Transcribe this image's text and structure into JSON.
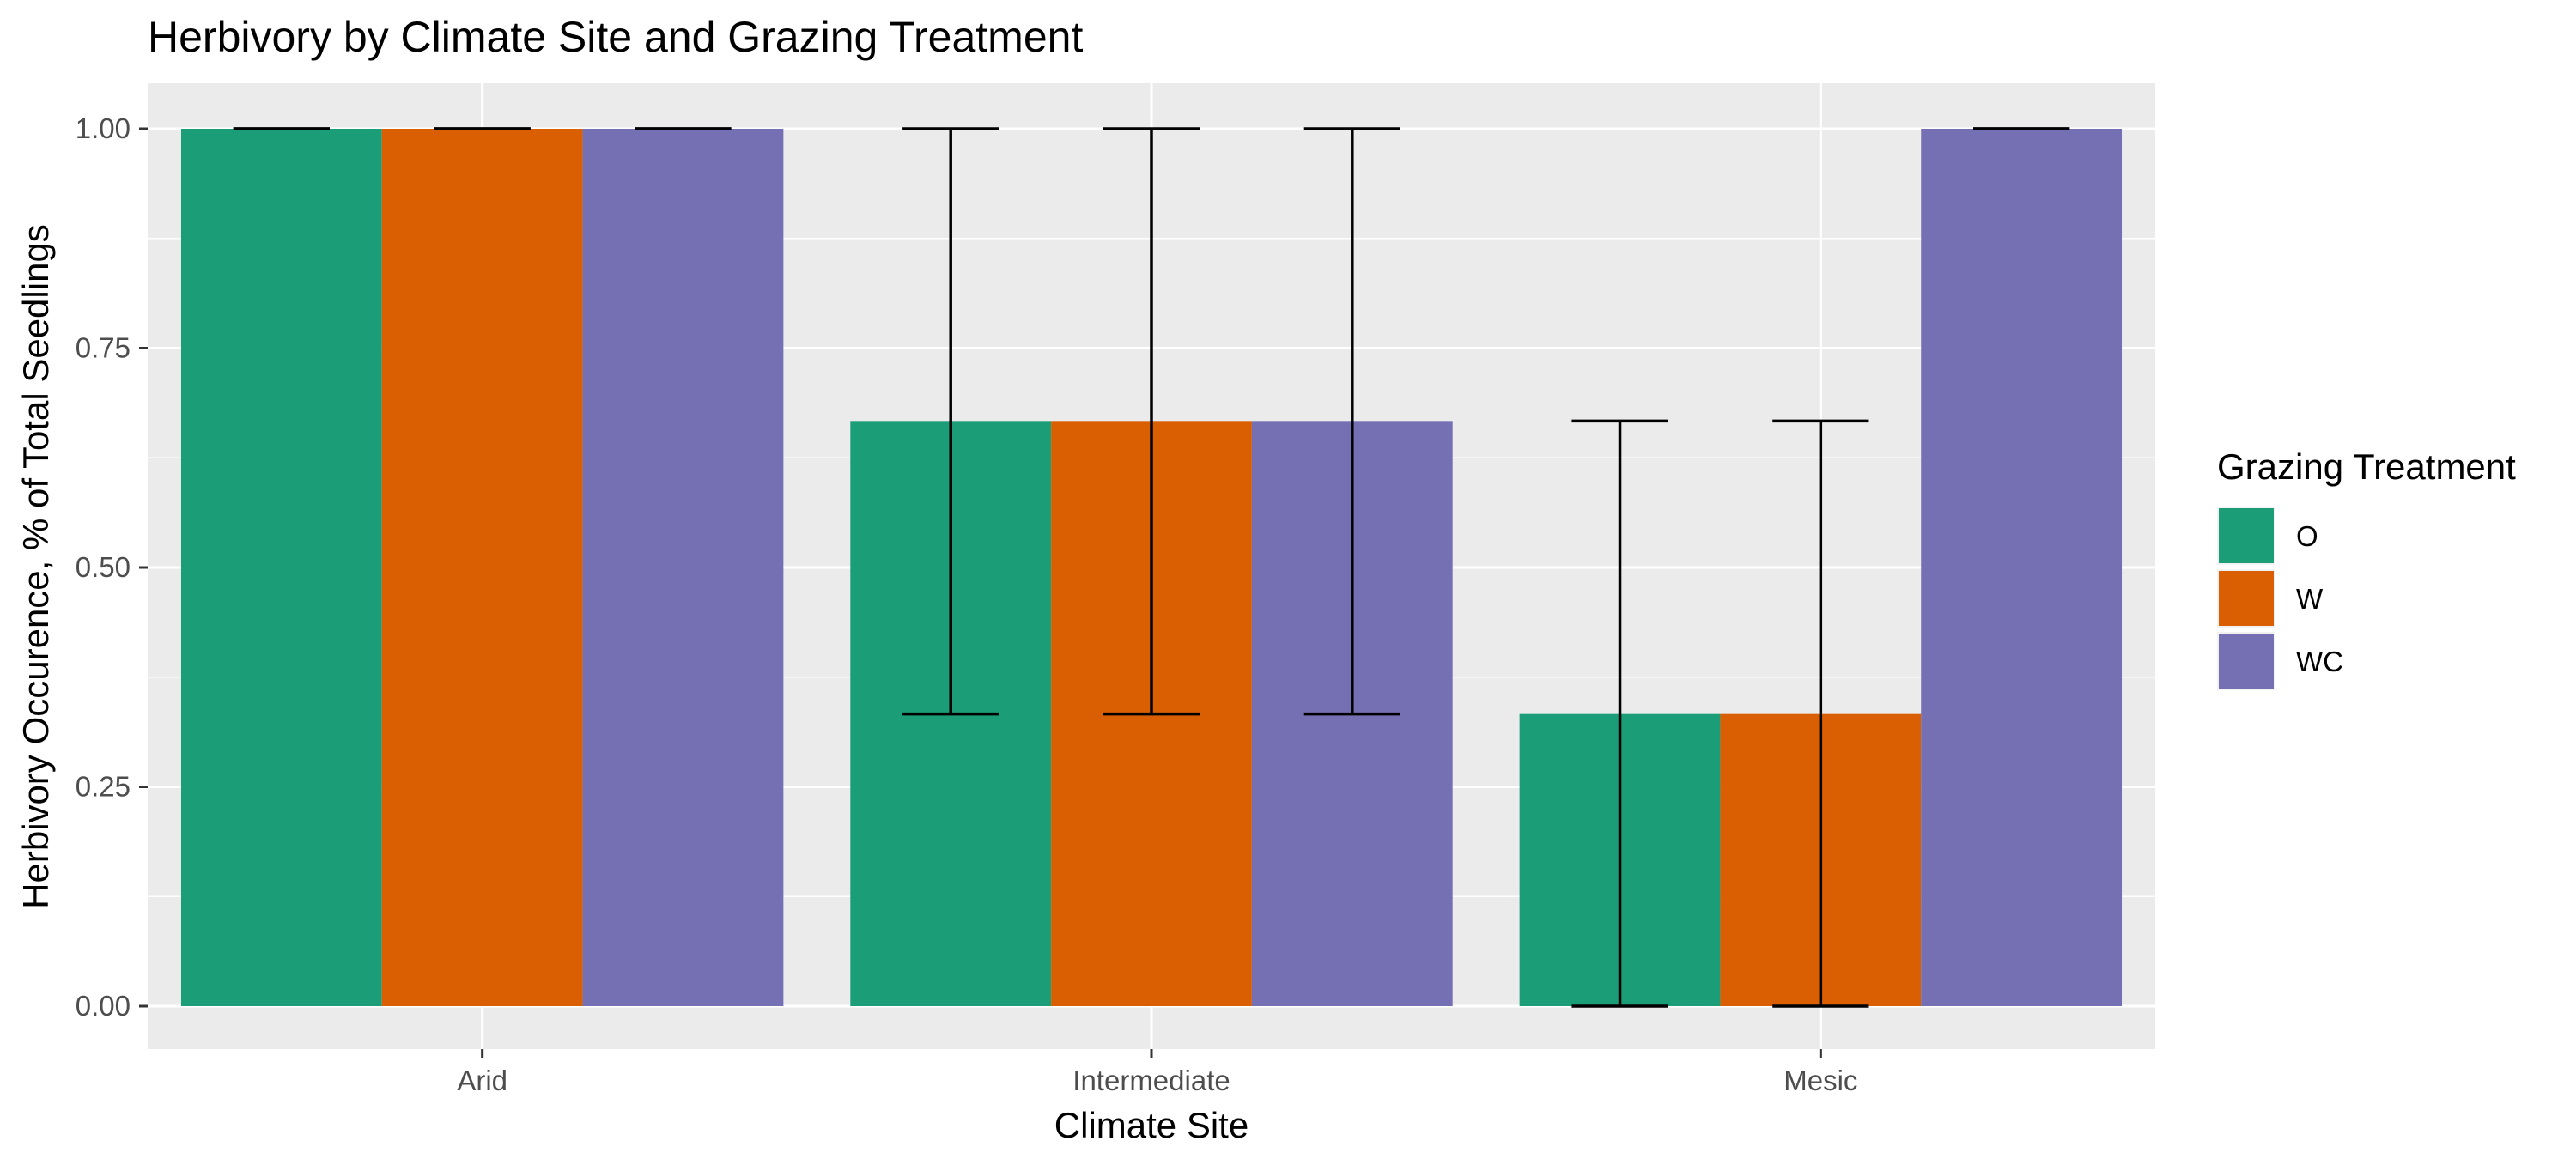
{
  "chart_data": {
    "type": "bar",
    "title": "Herbivory by Climate Site and Grazing Treatment",
    "xlabel": "Climate Site",
    "ylabel": "Herbivory Occurence, % of Total Seedlings",
    "categories": [
      "Arid",
      "Intermediate",
      "Mesic"
    ],
    "ylim": [
      0,
      1
    ],
    "y_ticks": [
      "0.00",
      "0.25",
      "0.50",
      "0.75",
      "1.00"
    ],
    "y_tick_values": [
      0,
      0.25,
      0.5,
      0.75,
      1
    ],
    "grid": true,
    "legend": {
      "title": "Grazing Treatment",
      "position": "right"
    },
    "series": [
      {
        "name": "O",
        "color": "#1b9e77",
        "values": [
          1.0,
          0.667,
          0.333
        ],
        "error_low": [
          1.0,
          0.333,
          0.0
        ],
        "error_high": [
          1.0,
          1.0,
          0.667
        ]
      },
      {
        "name": "W",
        "color": "#d95f02",
        "values": [
          1.0,
          0.667,
          0.333
        ],
        "error_low": [
          1.0,
          0.333,
          0.0
        ],
        "error_high": [
          1.0,
          1.0,
          0.667
        ]
      },
      {
        "name": "WC",
        "color": "#7570b3",
        "values": [
          1.0,
          0.667,
          1.0
        ],
        "error_low": [
          1.0,
          0.333,
          1.0
        ],
        "error_high": [
          1.0,
          1.0,
          1.0
        ]
      }
    ]
  }
}
